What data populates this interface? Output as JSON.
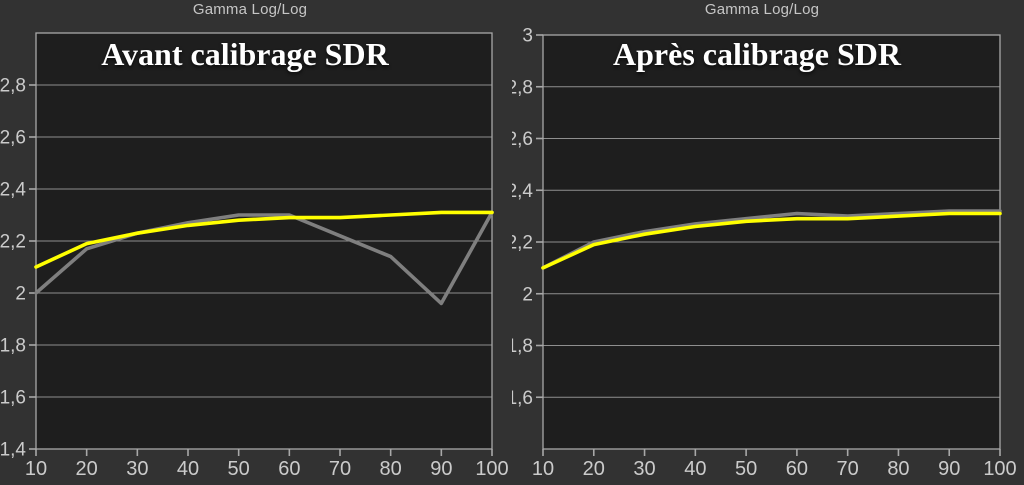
{
  "style": {
    "outer_background": "#323232",
    "plot_background": "#1e1e1e",
    "grid_color": "#8f8f8f",
    "axis_color": "#a8a8a8",
    "tick_label_color": "#cbcbcb",
    "title_color": "#ffffff",
    "top_label_color": "#c6c6c6",
    "reference_color": "#ffff00",
    "measured_color": "#7f7f7f"
  },
  "charts": [
    {
      "top_label": "Gamma Log/Log",
      "title": "Avant calibrage SDR"
    },
    {
      "top_label": "Gamma Log/Log",
      "title": "Après calibrage SDR"
    }
  ],
  "chart_data": [
    {
      "type": "line",
      "title": "Avant calibrage SDR",
      "top_label": "Gamma Log/Log",
      "xlabel": "",
      "ylabel": "",
      "xlim": [
        10,
        100
      ],
      "ylim": [
        1.4,
        3.0
      ],
      "grid": true,
      "legend_position": "none",
      "x": [
        10,
        20,
        30,
        40,
        50,
        60,
        70,
        80,
        90,
        100
      ],
      "x_tick_labels": [
        "10",
        "20",
        "30",
        "40",
        "50",
        "60",
        "70",
        "80",
        "90",
        "100"
      ],
      "y_ticks": [
        {
          "label": "2,8",
          "value": 2.8
        },
        {
          "label": "2,6",
          "value": 2.6
        },
        {
          "label": "2,4",
          "value": 2.4
        },
        {
          "label": "2,2",
          "value": 2.2
        },
        {
          "label": "2",
          "value": 2.0
        },
        {
          "label": "1,8",
          "value": 1.8
        },
        {
          "label": "1,6",
          "value": 1.6
        },
        {
          "label": "1,4",
          "value": 1.4
        }
      ],
      "y_gridlines": [
        1.6,
        1.8,
        2.0,
        2.2,
        2.4,
        2.6,
        2.8
      ],
      "series": [
        {
          "name": "gamma-measured",
          "color": "#7f7f7f",
          "values": [
            2.0,
            2.17,
            2.23,
            2.27,
            2.3,
            2.3,
            2.22,
            2.14,
            1.96,
            2.31
          ]
        },
        {
          "name": "gamma-reference",
          "color": "#ffff00",
          "values": [
            2.1,
            2.19,
            2.23,
            2.26,
            2.28,
            2.29,
            2.29,
            2.3,
            2.31,
            2.31
          ]
        }
      ]
    },
    {
      "type": "line",
      "title": "Après calibrage SDR",
      "top_label": "Gamma Log/Log",
      "xlabel": "",
      "ylabel": "",
      "xlim": [
        10,
        100
      ],
      "ylim": [
        1.4,
        3.0
      ],
      "grid": true,
      "legend_position": "none",
      "x": [
        10,
        20,
        30,
        40,
        50,
        60,
        70,
        80,
        90,
        100
      ],
      "x_tick_labels": [
        "10",
        "20",
        "30",
        "40",
        "50",
        "60",
        "70",
        "80",
        "90",
        "100"
      ],
      "y_ticks": [
        {
          "label": "3",
          "value": 3.0
        },
        {
          "label": "2,8",
          "value": 2.8
        },
        {
          "label": "2,6",
          "value": 2.6
        },
        {
          "label": "2,4",
          "value": 2.4
        },
        {
          "label": "2,2",
          "value": 2.2
        },
        {
          "label": "2",
          "value": 2.0
        },
        {
          "label": "1,8",
          "value": 1.8
        },
        {
          "label": "1,6",
          "value": 1.6
        }
      ],
      "y_gridlines": [
        1.6,
        1.8,
        2.0,
        2.2,
        2.4,
        2.6,
        2.8
      ],
      "series": [
        {
          "name": "gamma-measured",
          "color": "#7f7f7f",
          "values": [
            2.1,
            2.2,
            2.24,
            2.27,
            2.29,
            2.31,
            2.3,
            2.31,
            2.32,
            2.32
          ]
        },
        {
          "name": "gamma-reference",
          "color": "#ffff00",
          "values": [
            2.1,
            2.19,
            2.23,
            2.26,
            2.28,
            2.29,
            2.29,
            2.3,
            2.31,
            2.31
          ]
        }
      ]
    }
  ]
}
